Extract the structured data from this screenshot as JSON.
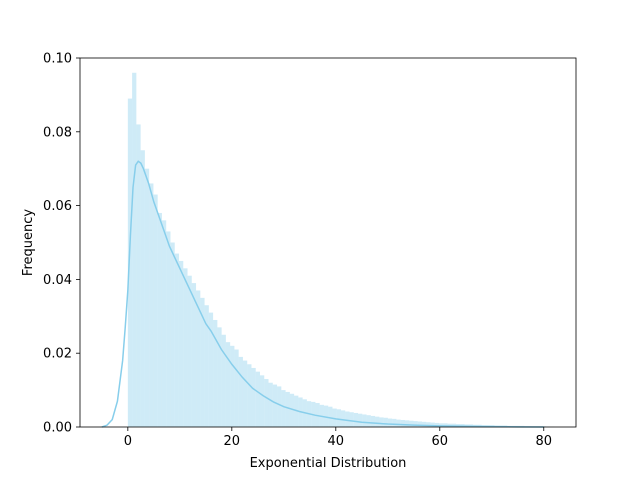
{
  "chart_data": {
    "type": "bar",
    "xlabel": "Exponential Distribution",
    "ylabel": "Frequency",
    "xlim": [
      -9.2,
      86.2
    ],
    "ylim": [
      0,
      0.1
    ],
    "xticks": [
      0,
      20,
      40,
      60,
      80
    ],
    "xtick_labels": [
      "0",
      "20",
      "40",
      "60",
      "80"
    ],
    "yticks": [
      0.0,
      0.02,
      0.04,
      0.06,
      0.08,
      0.1
    ],
    "ytick_labels": [
      "0.00",
      "0.02",
      "0.04",
      "0.06",
      "0.08",
      "0.10"
    ],
    "grid": false,
    "colors": {
      "bars": "#87ceeb",
      "bar_opacity": 0.4,
      "kde": "#87ceeb",
      "axes": "#000000"
    },
    "histogram": {
      "bin_width": 0.82,
      "bin_start": 0.0,
      "values": [
        0.089,
        0.096,
        0.082,
        0.075,
        0.07,
        0.066,
        0.063,
        0.058,
        0.056,
        0.053,
        0.05,
        0.047,
        0.045,
        0.043,
        0.041,
        0.039,
        0.037,
        0.035,
        0.033,
        0.031,
        0.029,
        0.027,
        0.025,
        0.023,
        0.022,
        0.021,
        0.019,
        0.018,
        0.017,
        0.016,
        0.015,
        0.014,
        0.013,
        0.012,
        0.0115,
        0.011,
        0.01,
        0.0095,
        0.009,
        0.0085,
        0.008,
        0.0075,
        0.007,
        0.0068,
        0.0065,
        0.006,
        0.0058,
        0.0055,
        0.005,
        0.0048,
        0.0045,
        0.0042,
        0.004,
        0.0038,
        0.0036,
        0.0034,
        0.0032,
        0.003,
        0.0028,
        0.0026,
        0.0025,
        0.0023,
        0.0022,
        0.002,
        0.0019,
        0.0018,
        0.0017,
        0.0016,
        0.0015,
        0.0014,
        0.0013,
        0.0012,
        0.0011,
        0.001,
        0.001,
        0.0009,
        0.0009,
        0.0008,
        0.0008,
        0.0007,
        0.0007,
        0.0006,
        0.0006,
        0.0005,
        0.0005,
        0.0005,
        0.0004,
        0.0004,
        0.0004,
        0.0003,
        0.0003,
        0.0003,
        0.0003,
        0.0002,
        0.0002,
        0.0002,
        0.0002,
        0.0002,
        0.0001,
        0.0001
      ]
    },
    "kde": {
      "x": [
        -5,
        -4,
        -3,
        -2,
        -1,
        -0.5,
        0,
        0.5,
        1,
        1.5,
        2,
        2.5,
        3,
        4,
        5,
        6,
        7,
        8,
        9,
        10,
        11,
        12,
        13,
        14,
        15,
        16,
        18,
        20,
        22,
        24,
        26,
        28,
        30,
        33,
        36,
        40,
        45,
        50,
        55,
        60,
        65,
        70,
        75,
        80
      ],
      "y": [
        0.0,
        0.0005,
        0.002,
        0.007,
        0.018,
        0.027,
        0.037,
        0.052,
        0.065,
        0.071,
        0.072,
        0.0715,
        0.07,
        0.066,
        0.061,
        0.057,
        0.053,
        0.049,
        0.046,
        0.043,
        0.04,
        0.037,
        0.034,
        0.031,
        0.028,
        0.026,
        0.021,
        0.017,
        0.0135,
        0.0105,
        0.0085,
        0.0068,
        0.0055,
        0.0042,
        0.0032,
        0.0022,
        0.0013,
        0.0008,
        0.0005,
        0.0003,
        0.0002,
        0.0001,
        5e-05,
        0.0
      ]
    }
  }
}
